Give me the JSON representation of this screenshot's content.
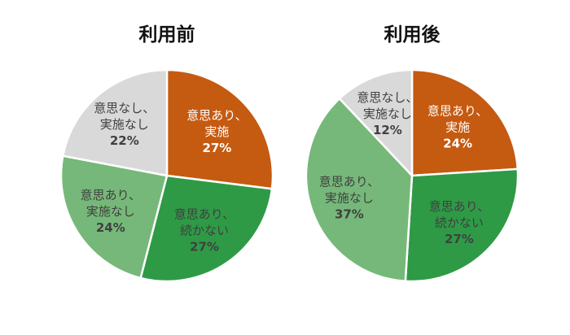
{
  "chart_data": [
    {
      "type": "pie",
      "title": "利用前",
      "slices": [
        {
          "label": [
            "意思あり、",
            "実施"
          ],
          "value": 27,
          "pct_text": "27%",
          "color": "#c55a11",
          "text_color": "#ffffff"
        },
        {
          "label": [
            "意思あり、",
            "続かない"
          ],
          "value": 27,
          "pct_text": "27%",
          "color": "#2e9a46",
          "text_color": "#404040"
        },
        {
          "label": [
            "意思あり、",
            "実施なし"
          ],
          "value": 24,
          "pct_text": "24%",
          "color": "#76b879",
          "text_color": "#404040"
        },
        {
          "label": [
            "意思なし、",
            "実施なし"
          ],
          "value": 22,
          "pct_text": "22%",
          "color": "#d9d9d9",
          "text_color": "#404040"
        }
      ]
    },
    {
      "type": "pie",
      "title": "利用後",
      "slices": [
        {
          "label": [
            "意思あり、",
            "実施"
          ],
          "value": 24,
          "pct_text": "24%",
          "color": "#c55a11",
          "text_color": "#ffffff"
        },
        {
          "label": [
            "意思あり、",
            "続かない"
          ],
          "value": 27,
          "pct_text": "27%",
          "color": "#2e9a46",
          "text_color": "#404040"
        },
        {
          "label": [
            "意思あり、",
            "実施なし"
          ],
          "value": 37,
          "pct_text": "37%",
          "color": "#76b879",
          "text_color": "#404040"
        },
        {
          "label": [
            "意思なし、",
            "実施なし"
          ],
          "value": 12,
          "pct_text": "12%",
          "color": "#d9d9d9",
          "text_color": "#404040"
        }
      ]
    }
  ]
}
